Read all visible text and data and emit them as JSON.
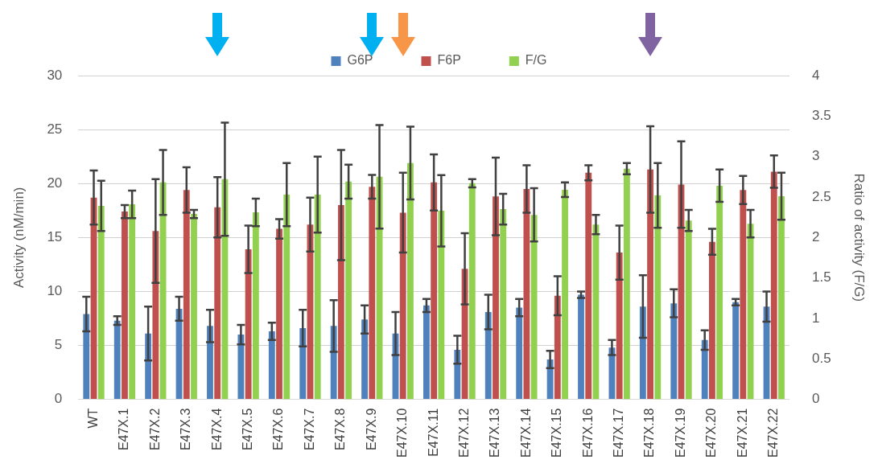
{
  "chart_data": {
    "type": "bar",
    "ylabel": "Activity (nM/min)",
    "y2label": "Ratio of activity (F/G)",
    "categories": [
      "WT",
      "E47X.1",
      "E47X.2",
      "E47X.3",
      "E47X.4",
      "E47X.5",
      "E47X.6",
      "E47X.7",
      "E47X.8",
      "E47X.9",
      "E47X.10",
      "E47X.11",
      "E47X.12",
      "E47X.13",
      "E47X.14",
      "E47X.15",
      "E47X.16",
      "E47X.17",
      "E47X.18",
      "E47X.19",
      "E47X.20",
      "E47X.21",
      "E47X.22"
    ],
    "series": [
      {
        "name": "G6P",
        "color": "#4f81bd",
        "values": [
          7.9,
          7.3,
          6.1,
          8.4,
          6.8,
          6.0,
          6.3,
          6.6,
          6.8,
          7.4,
          6.1,
          8.7,
          4.6,
          8.1,
          8.5,
          3.7,
          9.7,
          4.8,
          8.6,
          8.9,
          5.5,
          9.0,
          8.6
        ],
        "errors": [
          1.6,
          0.4,
          2.5,
          1.1,
          1.5,
          0.9,
          0.8,
          1.7,
          2.4,
          1.3,
          2.0,
          0.6,
          1.3,
          1.6,
          0.8,
          0.8,
          0.3,
          0.7,
          2.9,
          1.3,
          0.9,
          0.3,
          1.4
        ]
      },
      {
        "name": "F6P",
        "color": "#c0504d",
        "values": [
          18.7,
          17.4,
          15.6,
          19.4,
          17.8,
          13.9,
          15.8,
          16.2,
          18.0,
          19.7,
          17.3,
          20.1,
          12.1,
          18.8,
          19.5,
          9.6,
          21.0,
          13.6,
          21.3,
          19.9,
          14.6,
          19.4,
          21.1
        ],
        "errors": [
          2.5,
          0.6,
          4.8,
          2.1,
          2.8,
          2.2,
          0.9,
          2.5,
          5.1,
          1.1,
          3.7,
          2.6,
          3.3,
          3.6,
          2.2,
          1.8,
          0.7,
          2.5,
          4.0,
          4.0,
          1.2,
          1.3,
          1.5
        ]
      },
      {
        "name": "F/G",
        "color": "#92d050",
        "axis": "y2",
        "values": [
          2.39,
          2.41,
          2.68,
          2.29,
          2.72,
          2.31,
          2.53,
          2.53,
          2.69,
          2.75,
          2.92,
          2.33,
          2.67,
          2.35,
          2.28,
          2.59,
          2.16,
          2.85,
          2.52,
          2.21,
          2.64,
          2.17,
          2.51
        ],
        "errors": [
          0.31,
          0.17,
          0.4,
          0.05,
          0.7,
          0.17,
          0.39,
          0.47,
          0.21,
          0.64,
          0.45,
          0.44,
          0.05,
          0.19,
          0.33,
          0.09,
          0.12,
          0.07,
          0.4,
          0.13,
          0.2,
          0.17,
          0.29
        ]
      }
    ],
    "ylim": [
      0,
      30
    ],
    "yticks": [
      0,
      5,
      10,
      15,
      20,
      25,
      30
    ],
    "y2lim": [
      0,
      4
    ],
    "y2ticks": [
      0,
      0.5,
      1,
      1.5,
      2,
      2.5,
      3,
      3.5,
      4
    ],
    "grid": "y",
    "legend": "top"
  }
}
